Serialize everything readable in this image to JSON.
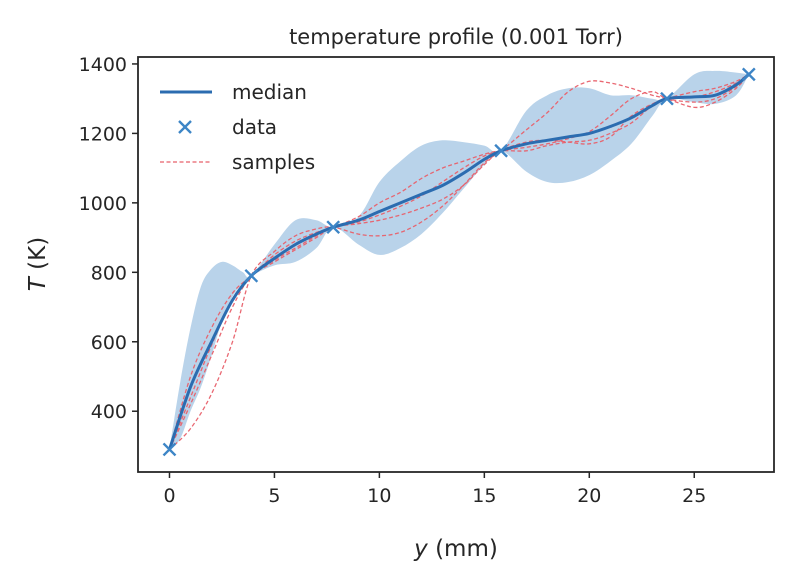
{
  "chart_data": {
    "type": "line",
    "title": "temperature profile (0.001 Torr)",
    "xlabel": "y (mm)",
    "xlabel_var": "y",
    "xlabel_unit": " (mm)",
    "ylabel": "T (K)",
    "ylabel_var": "T",
    "ylabel_unit": " (K)",
    "xlim": [
      -1.5,
      28.8
    ],
    "ylim": [
      225,
      1420
    ],
    "xticks": [
      0,
      5,
      10,
      15,
      20,
      25
    ],
    "yticks": [
      400,
      600,
      800,
      1000,
      1200,
      1400
    ],
    "legend_position": "top-left",
    "colors": {
      "median": "#2b6cb0",
      "data": "#3d85c6",
      "samples": "#e8606a",
      "band": "#b9d3ea",
      "axes": "#262626"
    },
    "legend": [
      {
        "label": "median",
        "kind": "line"
      },
      {
        "label": "data",
        "kind": "marker"
      },
      {
        "label": "samples",
        "kind": "dashed"
      }
    ],
    "data": {
      "name": "data",
      "x": [
        0,
        3.9,
        7.8,
        15.8,
        23.7,
        27.6
      ],
      "y": [
        290,
        790,
        930,
        1150,
        1300,
        1370
      ]
    },
    "median": {
      "name": "median",
      "x": [
        0,
        1,
        2,
        3,
        3.9,
        5,
        6,
        7,
        7.8,
        9,
        10,
        11,
        12,
        13,
        14,
        15,
        15.8,
        17,
        18,
        19,
        20,
        21,
        22,
        23,
        23.7,
        25,
        26,
        27,
        27.6
      ],
      "y": [
        290,
        470,
        600,
        720,
        790,
        840,
        880,
        910,
        930,
        950,
        975,
        1000,
        1025,
        1050,
        1085,
        1125,
        1150,
        1170,
        1180,
        1190,
        1200,
        1220,
        1245,
        1280,
        1300,
        1305,
        1310,
        1340,
        1370
      ]
    },
    "band": {
      "name": "uncertainty band",
      "x": [
        0,
        0.5,
        1,
        1.5,
        2,
        2.5,
        3,
        3.5,
        3.9,
        5,
        6,
        7,
        7.8,
        9,
        10,
        11,
        12,
        13,
        14,
        15,
        15.8,
        17,
        18,
        19,
        20,
        21,
        22,
        23,
        23.7,
        25,
        26,
        27,
        27.6
      ],
      "upper": [
        290,
        480,
        640,
        760,
        810,
        830,
        820,
        800,
        790,
        880,
        950,
        950,
        930,
        960,
        1060,
        1120,
        1165,
        1180,
        1175,
        1165,
        1150,
        1265,
        1310,
        1330,
        1330,
        1310,
        1310,
        1300,
        1300,
        1370,
        1380,
        1375,
        1370
      ],
      "lower": [
        290,
        320,
        400,
        470,
        560,
        660,
        730,
        770,
        790,
        820,
        830,
        870,
        930,
        880,
        850,
        870,
        910,
        970,
        1040,
        1110,
        1150,
        1090,
        1060,
        1060,
        1080,
        1120,
        1170,
        1250,
        1300,
        1290,
        1285,
        1310,
        1370
      ]
    },
    "series": [
      {
        "name": "sample 1",
        "x": [
          0,
          1,
          2,
          3,
          3.9,
          5,
          6,
          7,
          7.8,
          9,
          10,
          11,
          12,
          13,
          14,
          15,
          15.8,
          17,
          18,
          19,
          20,
          21,
          22,
          23,
          23.7,
          25,
          26,
          27,
          27.6
        ],
        "y": [
          290,
          500,
          640,
          740,
          790,
          850,
          890,
          915,
          930,
          960,
          1000,
          1030,
          1070,
          1100,
          1120,
          1140,
          1150,
          1150,
          1165,
          1175,
          1180,
          1200,
          1230,
          1280,
          1300,
          1320,
          1330,
          1350,
          1370
        ]
      },
      {
        "name": "sample 2",
        "x": [
          0,
          1,
          2,
          3,
          3.9,
          5,
          6,
          7,
          7.8,
          9,
          10,
          11,
          12,
          13,
          14,
          15,
          15.8,
          17,
          18,
          19,
          20,
          21,
          22,
          23,
          23.7,
          25,
          26,
          27,
          27.6
        ],
        "y": [
          290,
          350,
          450,
          600,
          790,
          860,
          905,
          925,
          930,
          910,
          905,
          915,
          945,
          990,
          1050,
          1115,
          1150,
          1210,
          1260,
          1320,
          1350,
          1345,
          1330,
          1310,
          1300,
          1275,
          1290,
          1330,
          1370
        ]
      },
      {
        "name": "sample 3",
        "x": [
          0,
          1,
          2,
          3,
          3.9,
          5,
          6,
          7,
          7.8,
          9,
          10,
          11,
          12,
          13,
          14,
          15,
          15.8,
          17,
          18,
          19,
          20,
          21,
          22,
          23,
          23.7,
          25,
          26,
          27,
          27.6
        ],
        "y": [
          290,
          420,
          560,
          700,
          790,
          835,
          870,
          905,
          930,
          940,
          950,
          965,
          985,
          1010,
          1050,
          1110,
          1150,
          1175,
          1180,
          1175,
          1170,
          1190,
          1250,
          1285,
          1300,
          1305,
          1320,
          1345,
          1370
        ]
      },
      {
        "name": "sample 4",
        "x": [
          0,
          1,
          2,
          3,
          3.9,
          5,
          6,
          7,
          7.8,
          9,
          10,
          11,
          12,
          13,
          14,
          15,
          15.8,
          17,
          18,
          19,
          20,
          21,
          22,
          23,
          23.7,
          25,
          26,
          27,
          27.6
        ],
        "y": [
          290,
          440,
          590,
          720,
          790,
          830,
          865,
          900,
          930,
          945,
          965,
          990,
          1020,
          1060,
          1100,
          1135,
          1150,
          1160,
          1170,
          1185,
          1205,
          1250,
          1300,
          1320,
          1300,
          1290,
          1300,
          1335,
          1370
        ]
      }
    ]
  }
}
